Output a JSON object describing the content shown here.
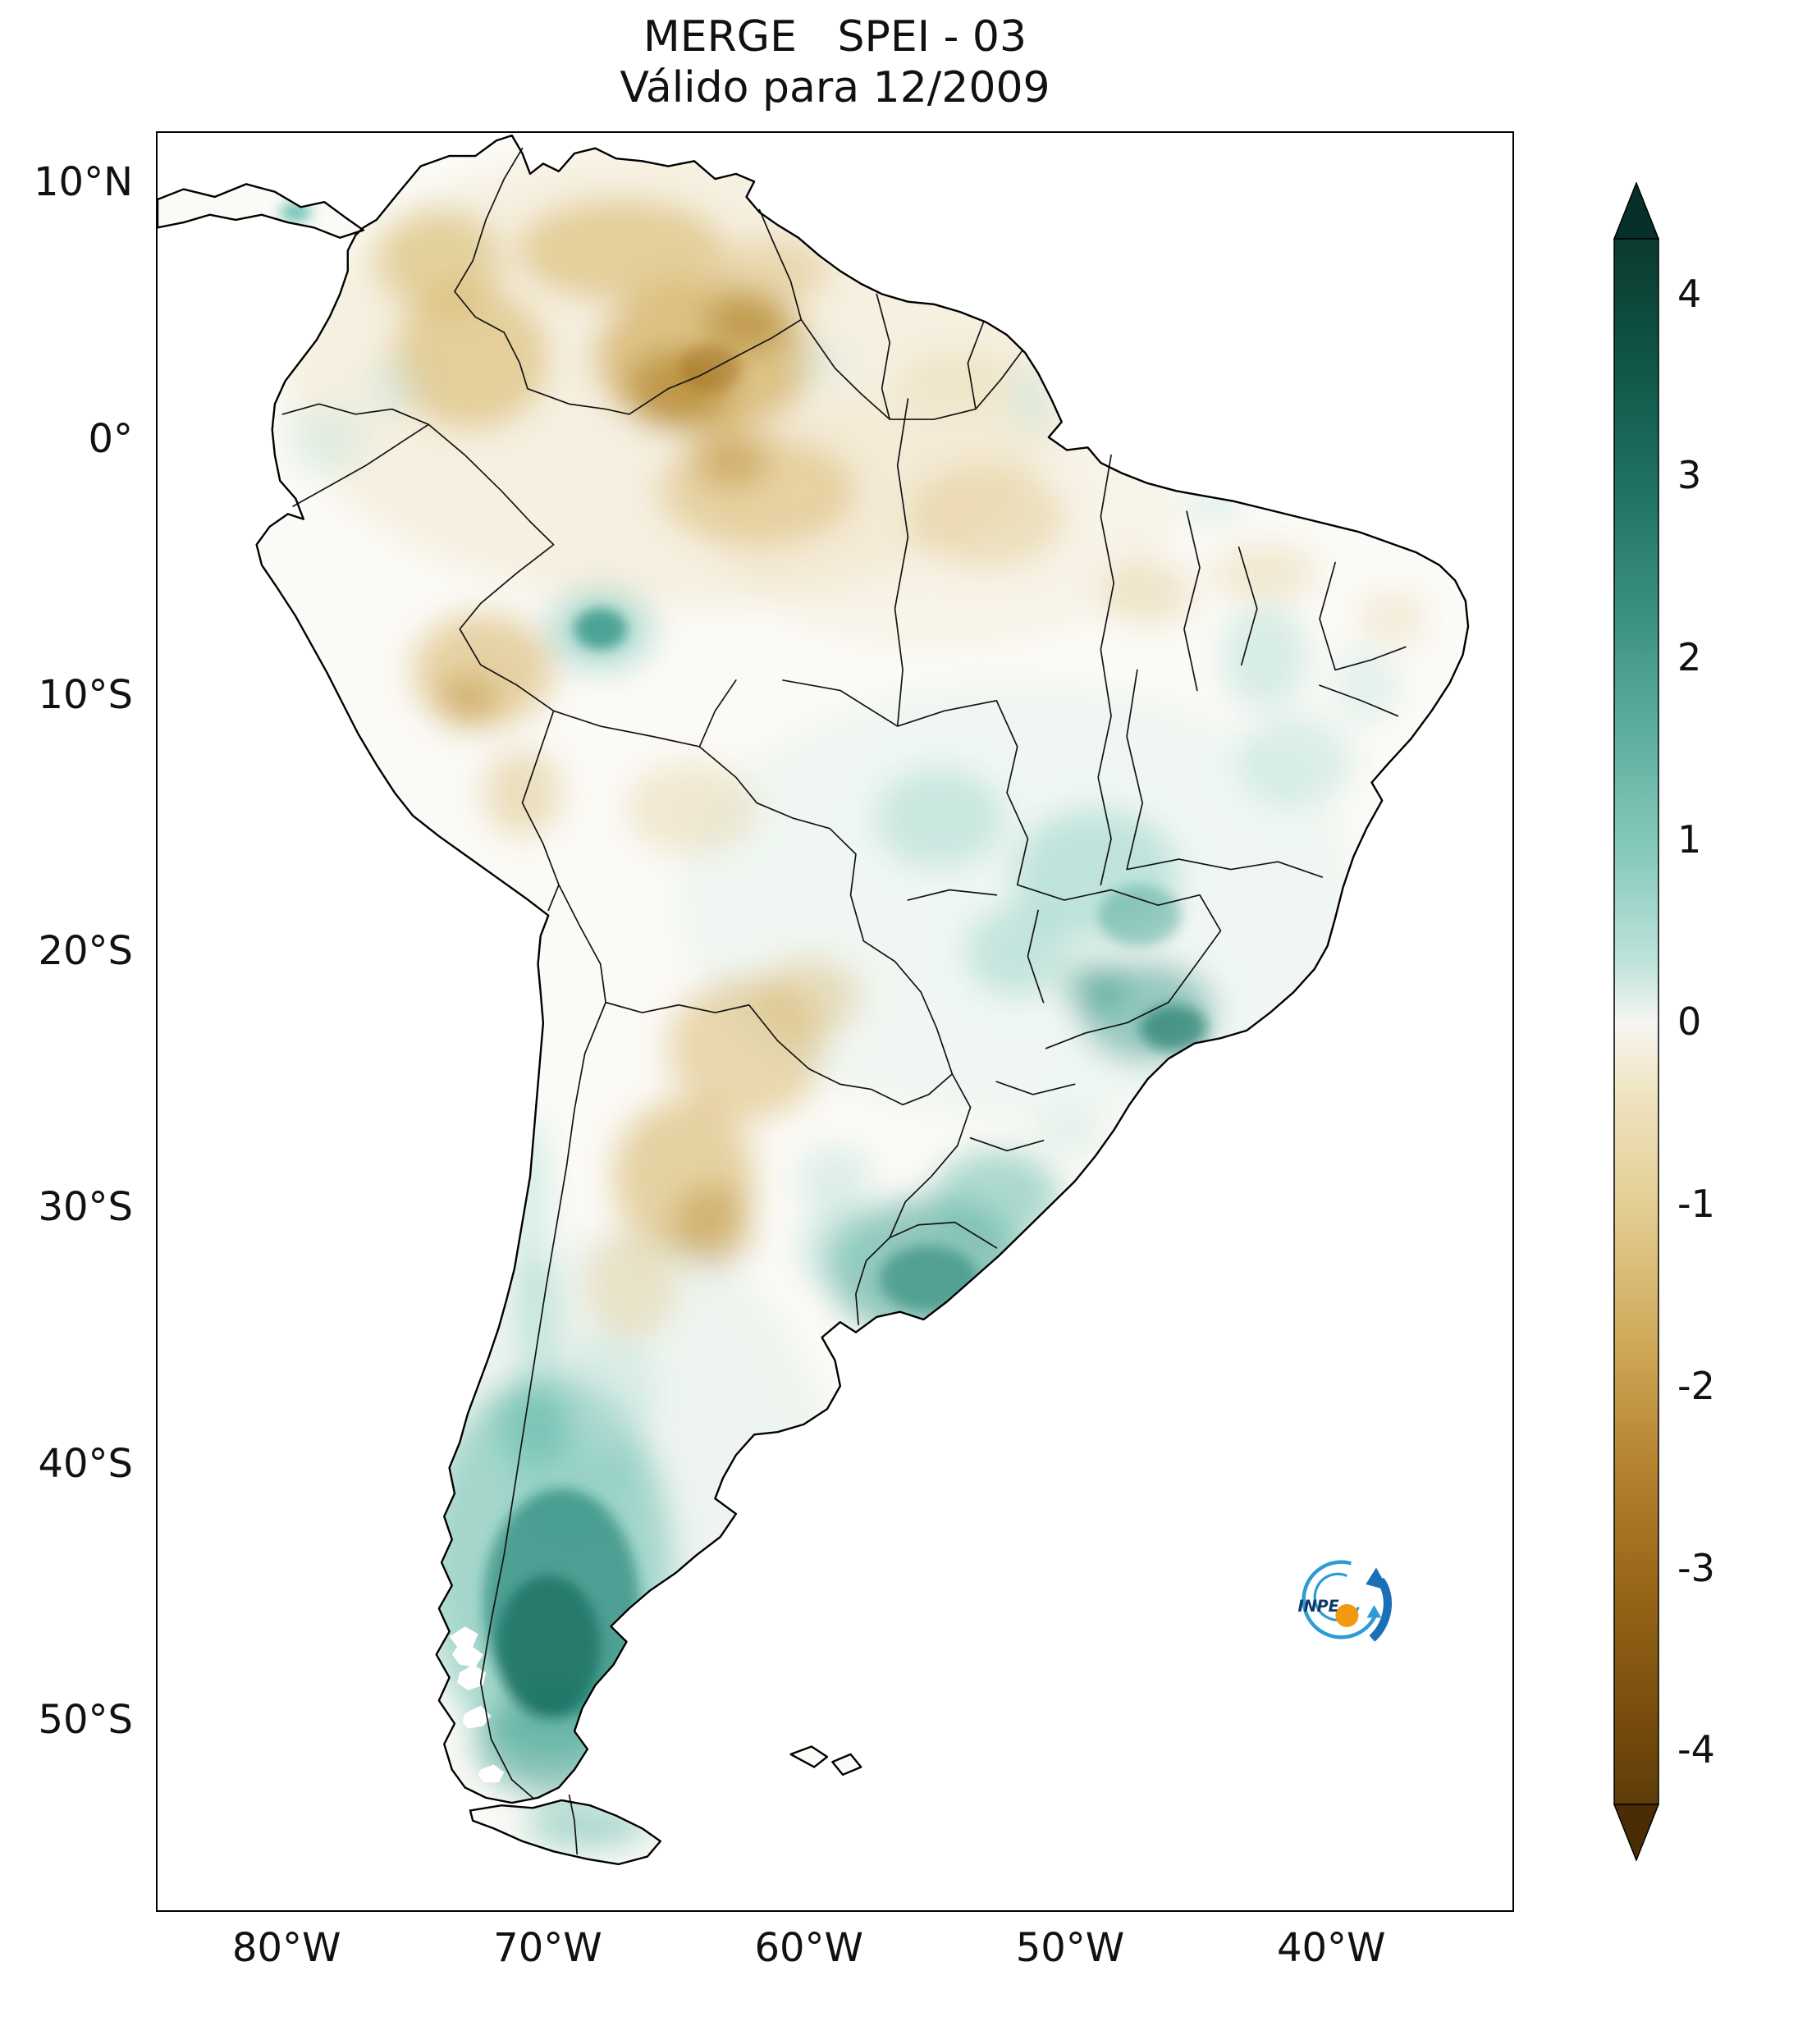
{
  "title": {
    "line1": "MERGE   SPEI - 03",
    "line2": "Válido para 12/2009"
  },
  "axes": {
    "x_ticks": [
      "80°W",
      "70°W",
      "60°W",
      "50°W",
      "40°W"
    ],
    "y_ticks": [
      "10°N",
      "0°",
      "10°S",
      "20°S",
      "30°S",
      "40°S",
      "50°S"
    ]
  },
  "colorbar": {
    "tick_labels": [
      "4",
      "3",
      "2",
      "1",
      "0",
      "-1",
      "-2",
      "-3",
      "-4"
    ],
    "range": [
      -4,
      4
    ],
    "colors": {
      "positive_extreme": "#0a3a2e",
      "positive": "#3a9181",
      "neutral": "#f5f5f2",
      "negative": "#d0ab5c",
      "negative_extreme": "#5e3c08"
    }
  },
  "logo": {
    "text": "INPE"
  },
  "map_summary": {
    "type": "heatmap",
    "variable": "SPEI-03 (3-month Standardized Precipitation-Evapotranspiration Index)",
    "valid_for": "12/2009",
    "region": "South America",
    "lon_range_deg_w": [
      85,
      33
    ],
    "lat_range": [
      "12°N",
      "57°S"
    ],
    "regions_depicted": [
      {
        "region": "Colombia, Venezuela and northwestern Amazon (N Brazil)",
        "anomaly": "dry, SPEI about -1 to -2"
      },
      {
        "region": "Central Amazon and eastern Pará",
        "anomaly": "slightly dry, SPEI about -0.5 to -1"
      },
      {
        "region": "Peru / Acre border region",
        "anomaly": "dry, SPEI about -1 to -2"
      },
      {
        "region": "Central-west and southeast Brazil (Goiás, Minas Gerais, São Paulo)",
        "anomaly": "wet, SPEI about +1 to +2"
      },
      {
        "region": "Interior northeast Brazil (Piauí, Bahia)",
        "anomaly": "slightly wet, SPEI about +0.5 to +1"
      },
      {
        "region": "Uruguay and Rio Grande do Sul",
        "anomaly": "wet, SPEI about +1.5 to +2.5"
      },
      {
        "region": "Gran Chaco and central-northern Argentina",
        "anomaly": "dry, SPEI about -1 to -2"
      },
      {
        "region": "Patagonia (southern Argentina and Chile)",
        "anomaly": "very wet, SPEI about +2 to +3"
      }
    ]
  }
}
